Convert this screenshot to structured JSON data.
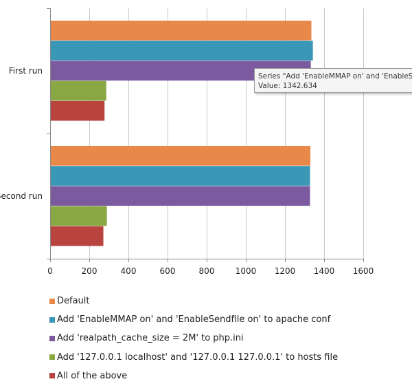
{
  "chart_data": {
    "type": "bar",
    "orientation": "horizontal",
    "categories": [
      "First run",
      "Second run"
    ],
    "series": [
      {
        "name": "Default",
        "color": "#e8894a",
        "values": [
          1335,
          1330
        ]
      },
      {
        "name": "Add 'EnableMMAP on' and 'EnableSendfile on' to apache conf",
        "color": "#3a97b6",
        "values": [
          1342.634,
          1328
        ]
      },
      {
        "name": "Add 'realpath_cache_size = 2M' to php.ini",
        "color": "#7b5aa0",
        "values": [
          1332,
          1328
        ]
      },
      {
        "name": "Add '127.0.0.1 localhost' and '127.0.0.1 127.0.0.1' to hosts file",
        "color": "#89a844",
        "values": [
          287,
          290
        ]
      },
      {
        "name": "All of the above",
        "color": "#b9433f",
        "values": [
          278,
          272
        ]
      }
    ],
    "xlim": [
      0,
      1600
    ],
    "xticks": [
      0,
      200,
      400,
      600,
      800,
      1000,
      1200,
      1400,
      1600
    ],
    "grid": true,
    "legend_position": "bottom"
  },
  "tooltip": {
    "line1": "Series \"Add 'EnableMMAP on' and 'EnableS",
    "line2": "Value: 1342.634"
  }
}
